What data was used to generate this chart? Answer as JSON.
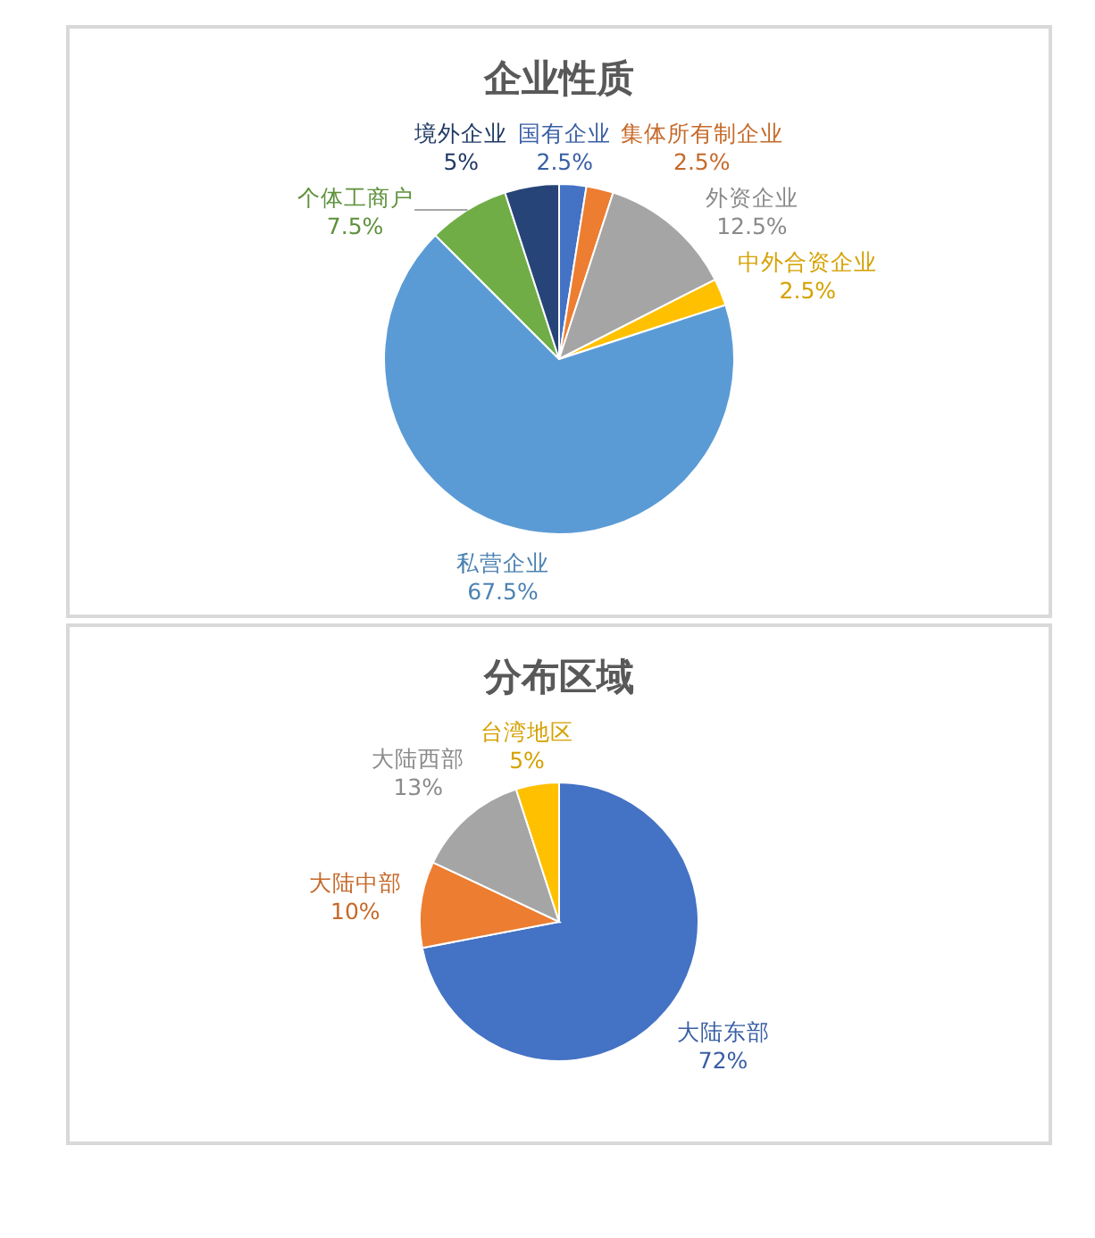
{
  "chart_data": [
    {
      "type": "pie",
      "title": "企业性质",
      "categories": [
        "国有企业",
        "集体所有制企业",
        "外资企业",
        "中外合资企业",
        "私营企业",
        "个体工商户",
        "境外企业"
      ],
      "values": [
        2.5,
        2.5,
        12.5,
        2.5,
        67.5,
        7.5,
        5
      ],
      "colors": [
        "#4472c4",
        "#ed7d31",
        "#a5a5a5",
        "#ffc000",
        "#5b9bd5",
        "#70ad47",
        "#264478"
      ],
      "value_labels": [
        "2.5%",
        "2.5%",
        "12.5%",
        "2.5%",
        "67.5%",
        "7.5%",
        "5%"
      ]
    },
    {
      "type": "pie",
      "title": "分布区域",
      "categories": [
        "大陆东部",
        "大陆中部",
        "大陆西部",
        "台湾地区"
      ],
      "values": [
        72,
        10,
        13,
        5
      ],
      "colors": [
        "#4472c4",
        "#ed7d31",
        "#a5a5a5",
        "#ffc000"
      ],
      "value_labels": [
        "72%",
        "10%",
        "13%",
        "5%"
      ]
    }
  ]
}
